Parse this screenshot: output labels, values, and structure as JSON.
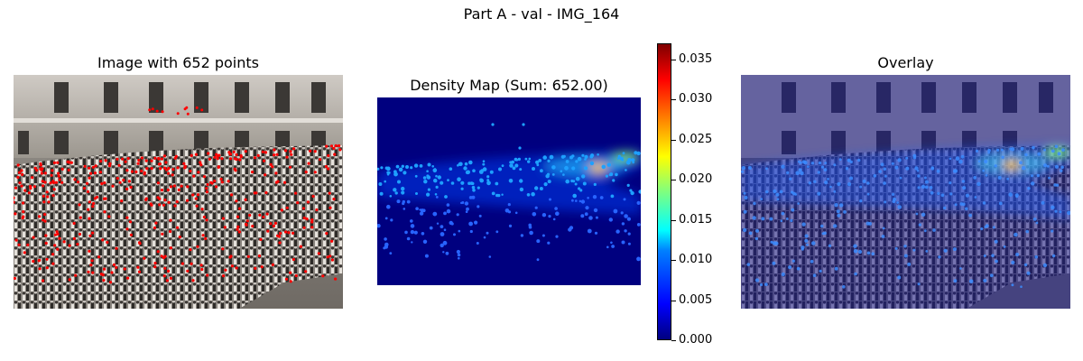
{
  "chart_data": {
    "type": "heatmap",
    "title": "Part A - val - IMG_164",
    "panels": [
      {
        "title": "Image with 652 points",
        "kind": "image-with-points"
      },
      {
        "title": "Density Map (Sum: 652.00)",
        "kind": "density-map"
      },
      {
        "title": "Overlay",
        "kind": "overlay"
      }
    ],
    "colorbar": {
      "colormap": "jet",
      "range": [
        0.0,
        0.037
      ],
      "ticks": [
        {
          "value": 0.0,
          "label": "0.000"
        },
        {
          "value": 0.005,
          "label": "0.005"
        },
        {
          "value": 0.01,
          "label": "0.010"
        },
        {
          "value": 0.015,
          "label": "0.015"
        },
        {
          "value": 0.02,
          "label": "0.020"
        },
        {
          "value": 0.025,
          "label": "0.025"
        },
        {
          "value": 0.03,
          "label": "0.030"
        },
        {
          "value": 0.035,
          "label": "0.035"
        }
      ]
    }
  }
}
